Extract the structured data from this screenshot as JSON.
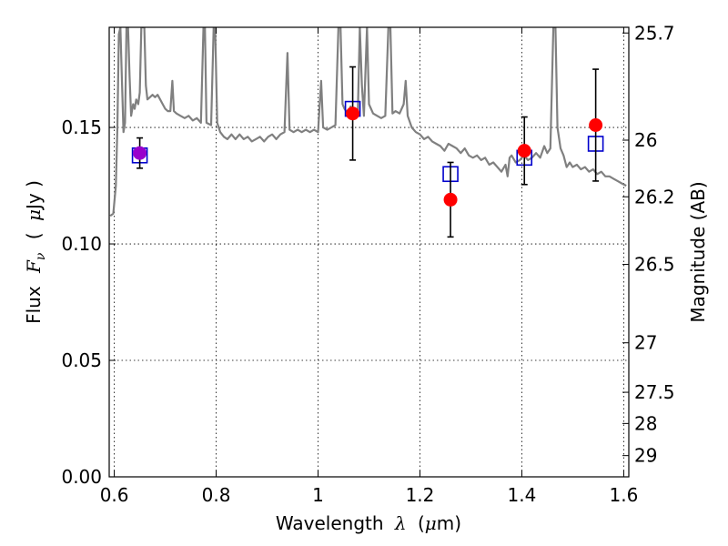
{
  "chart_data": {
    "type": "scatter",
    "xlabel_text": "Wavelength",
    "xlabel_math": "λ",
    "xlabel_units_open": "(",
    "xlabel_units_mu": "μ",
    "xlabel_units_rest": "m)",
    "ylabel_text": "Flux",
    "ylabel_math": "F",
    "ylabel_math_sub": "ν",
    "ylabel_units_open": "(",
    "ylabel_units_mu": "μ",
    "ylabel_units_rest": "Jy )",
    "y2label": "Magnitude (AB)",
    "xlim": [
      0.59,
      1.61
    ],
    "ylim": [
      0.0,
      0.193
    ],
    "grid": true,
    "x_ticks": [
      0.6,
      0.8,
      1.0,
      1.2,
      1.4,
      1.6
    ],
    "x_tick_labels": [
      "0.6",
      "0.8",
      "1",
      "1.2",
      "1.4",
      "1.6"
    ],
    "y_ticks": [
      0.0,
      0.05,
      0.1,
      0.15
    ],
    "y_tick_labels": [
      "0.00",
      "0.05",
      "0.10",
      "0.15"
    ],
    "mag_ticks": [
      25.7,
      26,
      26.2,
      26.5,
      27,
      27.5,
      28,
      29
    ],
    "mag_tick_labels": [
      "25.7",
      "26",
      "26.2",
      "26.5",
      "27",
      "27.5",
      "28",
      "29"
    ],
    "colors": {
      "model": "#808080",
      "observed": "#ff0000",
      "model_box": "#0000cc",
      "overlap_point": "#9900cc",
      "errorbar": "#000000"
    },
    "observed": [
      {
        "x": 0.65,
        "y": 0.139,
        "err": 0.0065,
        "overlap": true
      },
      {
        "x": 1.068,
        "y": 0.156,
        "err": 0.02
      },
      {
        "x": 1.26,
        "y": 0.119,
        "err": 0.016
      },
      {
        "x": 1.405,
        "y": 0.14,
        "err": 0.0145
      },
      {
        "x": 1.545,
        "y": 0.151,
        "err": 0.024
      }
    ],
    "model_boxes": [
      {
        "x": 0.65,
        "y": 0.138
      },
      {
        "x": 1.068,
        "y": 0.158
      },
      {
        "x": 1.26,
        "y": 0.13
      },
      {
        "x": 1.405,
        "y": 0.137
      },
      {
        "x": 1.545,
        "y": 0.143
      }
    ],
    "spectrum": [
      [
        0.592,
        0.112
      ],
      [
        0.598,
        0.113
      ],
      [
        0.603,
        0.125
      ],
      [
        0.606,
        0.15
      ],
      [
        0.609,
        0.19
      ],
      [
        0.612,
        0.193
      ],
      [
        0.615,
        0.17
      ],
      [
        0.618,
        0.148
      ],
      [
        0.621,
        0.152
      ],
      [
        0.624,
        0.193
      ],
      [
        0.627,
        0.193
      ],
      [
        0.63,
        0.172
      ],
      [
        0.633,
        0.155
      ],
      [
        0.637,
        0.16
      ],
      [
        0.64,
        0.158
      ],
      [
        0.643,
        0.162
      ],
      [
        0.647,
        0.16
      ],
      [
        0.65,
        0.165
      ],
      [
        0.653,
        0.193
      ],
      [
        0.656,
        0.193
      ],
      [
        0.659,
        0.193
      ],
      [
        0.662,
        0.168
      ],
      [
        0.665,
        0.162
      ],
      [
        0.67,
        0.163
      ],
      [
        0.675,
        0.164
      ],
      [
        0.68,
        0.163
      ],
      [
        0.685,
        0.164
      ],
      [
        0.69,
        0.162
      ],
      [
        0.695,
        0.16
      ],
      [
        0.7,
        0.158
      ],
      [
        0.705,
        0.157
      ],
      [
        0.71,
        0.157
      ],
      [
        0.714,
        0.17
      ],
      [
        0.717,
        0.157
      ],
      [
        0.722,
        0.156
      ],
      [
        0.73,
        0.155
      ],
      [
        0.738,
        0.154
      ],
      [
        0.746,
        0.155
      ],
      [
        0.754,
        0.153
      ],
      [
        0.762,
        0.154
      ],
      [
        0.77,
        0.152
      ],
      [
        0.775,
        0.193
      ],
      [
        0.778,
        0.193
      ],
      [
        0.781,
        0.152
      ],
      [
        0.79,
        0.151
      ],
      [
        0.795,
        0.193
      ],
      [
        0.798,
        0.193
      ],
      [
        0.802,
        0.152
      ],
      [
        0.808,
        0.148
      ],
      [
        0.815,
        0.146
      ],
      [
        0.822,
        0.145
      ],
      [
        0.83,
        0.147
      ],
      [
        0.838,
        0.145
      ],
      [
        0.846,
        0.147
      ],
      [
        0.854,
        0.145
      ],
      [
        0.862,
        0.146
      ],
      [
        0.87,
        0.144
      ],
      [
        0.878,
        0.145
      ],
      [
        0.886,
        0.146
      ],
      [
        0.894,
        0.144
      ],
      [
        0.902,
        0.146
      ],
      [
        0.91,
        0.147
      ],
      [
        0.918,
        0.145
      ],
      [
        0.926,
        0.147
      ],
      [
        0.934,
        0.148
      ],
      [
        0.94,
        0.182
      ],
      [
        0.944,
        0.149
      ],
      [
        0.952,
        0.148
      ],
      [
        0.96,
        0.149
      ],
      [
        0.968,
        0.148
      ],
      [
        0.976,
        0.149
      ],
      [
        0.984,
        0.148
      ],
      [
        0.992,
        0.149
      ],
      [
        1.0,
        0.148
      ],
      [
        1.006,
        0.17
      ],
      [
        1.01,
        0.15
      ],
      [
        1.018,
        0.149
      ],
      [
        1.026,
        0.15
      ],
      [
        1.034,
        0.151
      ],
      [
        1.04,
        0.193
      ],
      [
        1.044,
        0.193
      ],
      [
        1.048,
        0.16
      ],
      [
        1.052,
        0.158
      ],
      [
        1.058,
        0.156
      ],
      [
        1.064,
        0.159
      ],
      [
        1.07,
        0.155
      ],
      [
        1.078,
        0.156
      ],
      [
        1.082,
        0.193
      ],
      [
        1.086,
        0.168
      ],
      [
        1.09,
        0.155
      ],
      [
        1.096,
        0.193
      ],
      [
        1.1,
        0.16
      ],
      [
        1.108,
        0.156
      ],
      [
        1.116,
        0.155
      ],
      [
        1.124,
        0.154
      ],
      [
        1.132,
        0.155
      ],
      [
        1.138,
        0.193
      ],
      [
        1.142,
        0.193
      ],
      [
        1.146,
        0.156
      ],
      [
        1.152,
        0.157
      ],
      [
        1.16,
        0.156
      ],
      [
        1.168,
        0.16
      ],
      [
        1.172,
        0.17
      ],
      [
        1.176,
        0.155
      ],
      [
        1.184,
        0.15
      ],
      [
        1.192,
        0.148
      ],
      [
        1.2,
        0.147
      ],
      [
        1.208,
        0.145
      ],
      [
        1.216,
        0.146
      ],
      [
        1.224,
        0.144
      ],
      [
        1.232,
        0.143
      ],
      [
        1.24,
        0.142
      ],
      [
        1.248,
        0.14
      ],
      [
        1.256,
        0.143
      ],
      [
        1.264,
        0.142
      ],
      [
        1.272,
        0.141
      ],
      [
        1.28,
        0.139
      ],
      [
        1.288,
        0.141
      ],
      [
        1.296,
        0.138
      ],
      [
        1.304,
        0.137
      ],
      [
        1.312,
        0.138
      ],
      [
        1.32,
        0.136
      ],
      [
        1.328,
        0.137
      ],
      [
        1.336,
        0.134
      ],
      [
        1.344,
        0.135
      ],
      [
        1.352,
        0.133
      ],
      [
        1.36,
        0.131
      ],
      [
        1.368,
        0.134
      ],
      [
        1.372,
        0.129
      ],
      [
        1.376,
        0.137
      ],
      [
        1.38,
        0.138
      ],
      [
        1.388,
        0.135
      ],
      [
        1.396,
        0.136
      ],
      [
        1.404,
        0.138
      ],
      [
        1.412,
        0.136
      ],
      [
        1.42,
        0.137
      ],
      [
        1.428,
        0.139
      ],
      [
        1.436,
        0.137
      ],
      [
        1.444,
        0.142
      ],
      [
        1.45,
        0.139
      ],
      [
        1.456,
        0.141
      ],
      [
        1.462,
        0.193
      ],
      [
        1.466,
        0.193
      ],
      [
        1.47,
        0.15
      ],
      [
        1.476,
        0.141
      ],
      [
        1.482,
        0.138
      ],
      [
        1.488,
        0.133
      ],
      [
        1.494,
        0.135
      ],
      [
        1.5,
        0.133
      ],
      [
        1.508,
        0.134
      ],
      [
        1.516,
        0.132
      ],
      [
        1.524,
        0.133
      ],
      [
        1.532,
        0.131
      ],
      [
        1.54,
        0.132
      ],
      [
        1.548,
        0.13
      ],
      [
        1.556,
        0.131
      ],
      [
        1.564,
        0.129
      ],
      [
        1.572,
        0.129
      ],
      [
        1.58,
        0.128
      ],
      [
        1.588,
        0.127
      ],
      [
        1.596,
        0.126
      ],
      [
        1.605,
        0.125
      ]
    ]
  }
}
